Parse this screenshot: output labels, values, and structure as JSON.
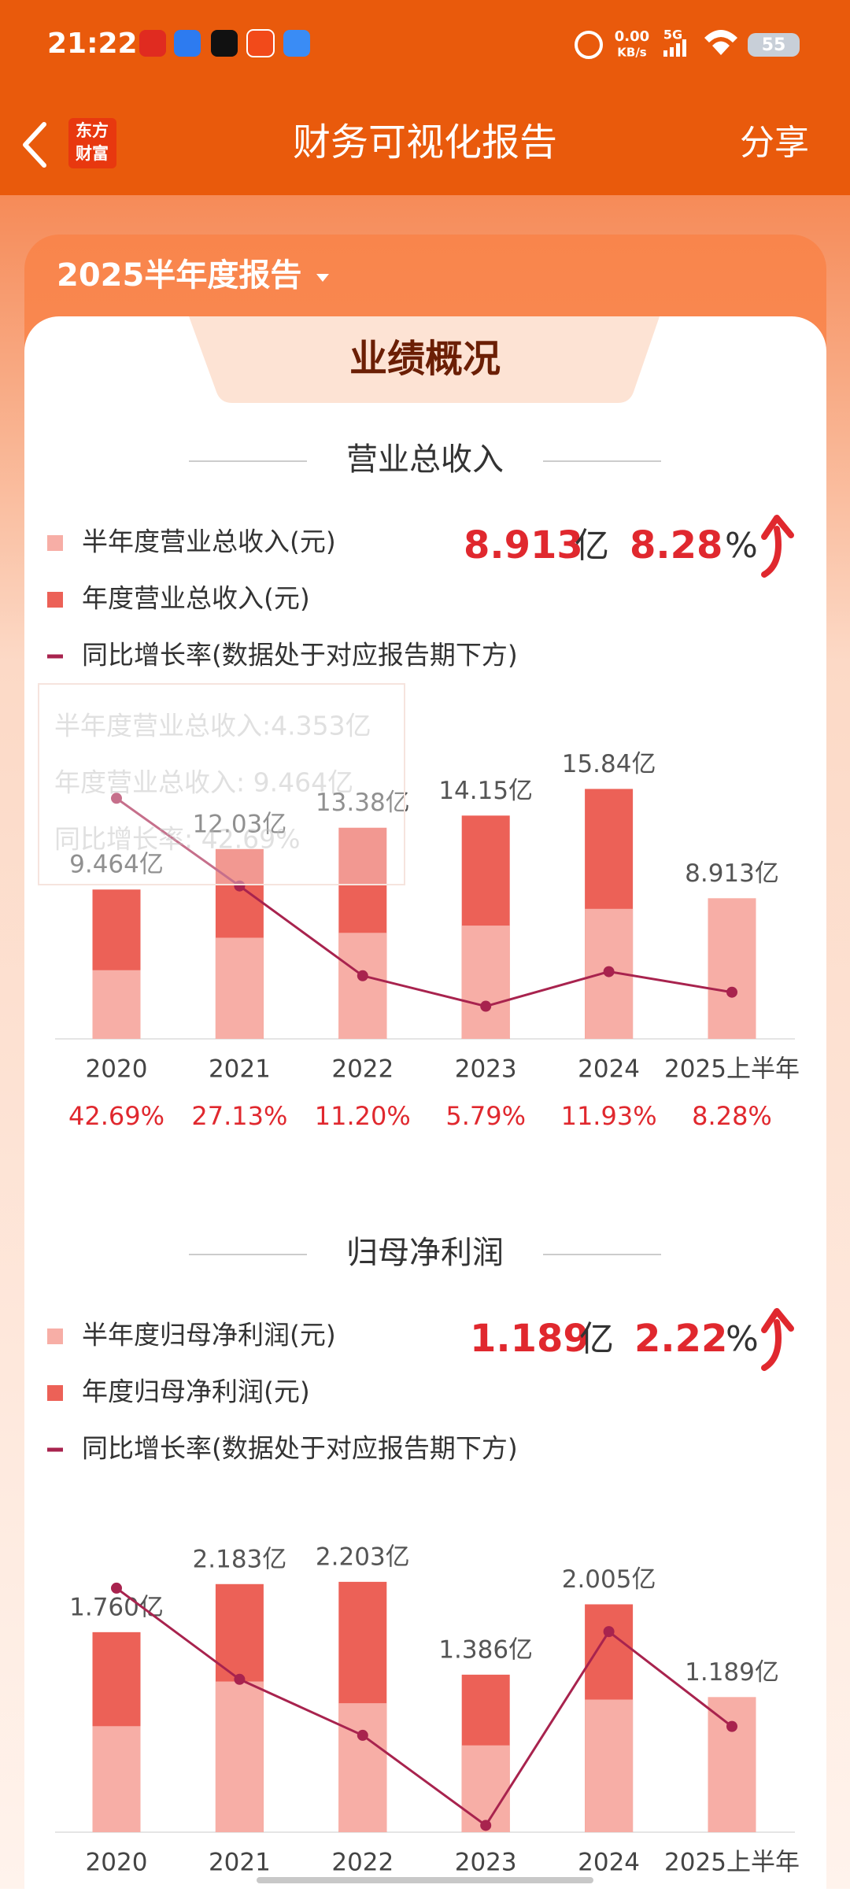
{
  "status_bar": {
    "time": "21:22",
    "net_speed": "0.00",
    "net_unit": "KB/s",
    "network": "5G",
    "battery": "55"
  },
  "nav": {
    "logo_top": "东方",
    "logo_bottom": "财富",
    "title": "财务可视化报告",
    "share": "分享"
  },
  "report_selector": "2025半年度报告",
  "section_tab": "业绩概况",
  "chart_data": [
    {
      "type": "bar",
      "title": "营业总收入",
      "summary": {
        "value": "8.913",
        "unit": "亿",
        "growth": "8.28",
        "growth_unit": "%"
      },
      "tooltip": [
        "半年度营业总收入:4.353亿",
        "年度营业总收入:   9.464亿",
        "同比增长率:   42.69%"
      ],
      "categories": [
        "2020",
        "2021",
        "2022",
        "2023",
        "2024",
        "2025上半年"
      ],
      "ylim": [
        0,
        20
      ],
      "y2lim": [
        0,
        56
      ],
      "series": [
        {
          "name": "半年度营业总收入(元)",
          "color": "#f7aea6",
          "values": [
            4.353,
            6.41,
            6.72,
            7.18,
            8.24,
            8.913
          ],
          "value_labels": [
            null,
            null,
            null,
            null,
            null,
            "8.913亿"
          ]
        },
        {
          "name": "年度营业总收入(元)",
          "color": "#ec6157",
          "values": [
            9.464,
            12.03,
            13.38,
            14.15,
            15.84,
            null
          ],
          "value_labels": [
            "9.464亿",
            "12.03亿",
            "13.38亿",
            "14.15亿",
            "15.84亿",
            null
          ]
        },
        {
          "name": "同比增长率(数据处于对应报告期下方)",
          "type": "line",
          "axis": "y2",
          "color": "#a8234e",
          "values": [
            42.69,
            27.13,
            11.2,
            5.79,
            11.93,
            8.28
          ],
          "value_labels": [
            "42.69%",
            "27.13%",
            "11.20%",
            "5.79%",
            "11.93%",
            "8.28%"
          ]
        }
      ]
    },
    {
      "type": "bar",
      "title": "归母净利润",
      "summary": {
        "value": "1.189",
        "unit": "亿",
        "growth": "2.22",
        "growth_unit": "%"
      },
      "categories": [
        "2020",
        "2021",
        "2022",
        "2023",
        "2024",
        "2025上半年"
      ],
      "ylim": [
        0,
        2.5
      ],
      "y2lim": [
        -35,
        65
      ],
      "series": [
        {
          "name": "半年度归母净利润(元)",
          "color": "#f7aea6",
          "values": [
            0.933,
            1.326,
            1.135,
            0.764,
            1.167,
            1.189
          ],
          "value_labels": [
            null,
            null,
            null,
            null,
            null,
            "1.189亿"
          ]
        },
        {
          "name": "年度归母净利润(元)",
          "color": "#ec6157",
          "values": [
            1.76,
            2.183,
            2.203,
            1.386,
            2.005,
            null
          ],
          "value_labels": [
            "1.760亿",
            "2.183亿",
            "2.203亿",
            "1.386亿",
            "2.005亿",
            null
          ]
        },
        {
          "name": "同比增长率(数据处于对应报告期下方)",
          "type": "line",
          "axis": "y2",
          "color": "#a8234e",
          "values": [
            50.9,
            18.8,
            -0.9,
            -32.6,
            35.6,
            2.22
          ]
        }
      ]
    }
  ]
}
